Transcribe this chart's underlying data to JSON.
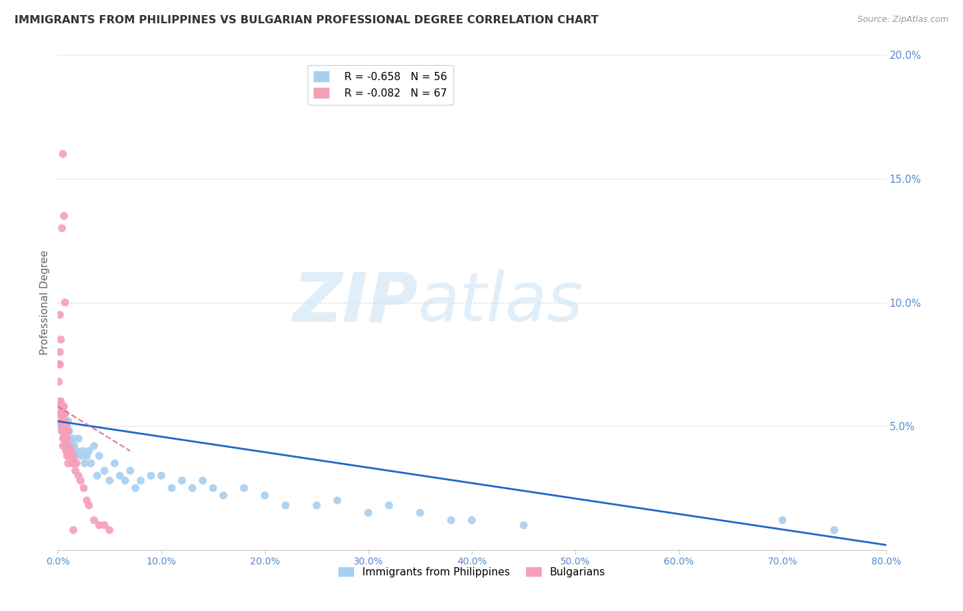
{
  "title": "IMMIGRANTS FROM PHILIPPINES VS BULGARIAN PROFESSIONAL DEGREE CORRELATION CHART",
  "source": "Source: ZipAtlas.com",
  "ylabel": "Professional Degree",
  "watermark_zip": "ZIP",
  "watermark_atlas": "atlas",
  "series": [
    {
      "name": "Immigrants from Philippines",
      "R": -0.658,
      "N": 56,
      "color": "#a8cff0",
      "line_color": "#2266cc",
      "line_style": "solid"
    },
    {
      "name": "Bulgarians",
      "R": -0.082,
      "N": 67,
      "color": "#f4a0b8",
      "line_color": "#e06080",
      "line_style": "dashed"
    }
  ],
  "xlim": [
    0.0,
    0.8
  ],
  "ylim": [
    0.0,
    0.2
  ],
  "xticks": [
    0.0,
    0.1,
    0.2,
    0.3,
    0.4,
    0.5,
    0.6,
    0.7,
    0.8
  ],
  "yticks": [
    0.0,
    0.05,
    0.1,
    0.15,
    0.2
  ],
  "xtick_labels": [
    "0.0%",
    "10.0%",
    "20.0%",
    "30.0%",
    "40.0%",
    "50.0%",
    "60.0%",
    "70.0%",
    "80.0%"
  ],
  "ytick_labels": [
    "",
    "5.0%",
    "10.0%",
    "15.0%",
    "20.0%"
  ],
  "background_color": "#ffffff",
  "grid_color": "#cccccc",
  "blue_scatter_x": [
    0.003,
    0.004,
    0.005,
    0.006,
    0.007,
    0.008,
    0.009,
    0.01,
    0.01,
    0.011,
    0.012,
    0.013,
    0.014,
    0.015,
    0.016,
    0.017,
    0.018,
    0.02,
    0.022,
    0.024,
    0.026,
    0.028,
    0.03,
    0.032,
    0.035,
    0.038,
    0.04,
    0.045,
    0.05,
    0.055,
    0.06,
    0.065,
    0.07,
    0.075,
    0.08,
    0.09,
    0.1,
    0.11,
    0.12,
    0.13,
    0.14,
    0.15,
    0.16,
    0.18,
    0.2,
    0.22,
    0.25,
    0.27,
    0.3,
    0.32,
    0.35,
    0.38,
    0.4,
    0.45,
    0.7,
    0.75
  ],
  "blue_scatter_y": [
    0.05,
    0.048,
    0.055,
    0.052,
    0.048,
    0.045,
    0.05,
    0.042,
    0.052,
    0.048,
    0.045,
    0.042,
    0.04,
    0.045,
    0.042,
    0.038,
    0.04,
    0.045,
    0.038,
    0.04,
    0.035,
    0.038,
    0.04,
    0.035,
    0.042,
    0.03,
    0.038,
    0.032,
    0.028,
    0.035,
    0.03,
    0.028,
    0.032,
    0.025,
    0.028,
    0.03,
    0.03,
    0.025,
    0.028,
    0.025,
    0.028,
    0.025,
    0.022,
    0.025,
    0.022,
    0.018,
    0.018,
    0.02,
    0.015,
    0.018,
    0.015,
    0.012,
    0.012,
    0.01,
    0.012,
    0.008
  ],
  "pink_scatter_x": [
    0.001,
    0.001,
    0.001,
    0.002,
    0.002,
    0.002,
    0.002,
    0.003,
    0.003,
    0.003,
    0.003,
    0.004,
    0.004,
    0.004,
    0.004,
    0.005,
    0.005,
    0.005,
    0.005,
    0.005,
    0.005,
    0.006,
    0.006,
    0.006,
    0.006,
    0.007,
    0.007,
    0.007,
    0.007,
    0.007,
    0.008,
    0.008,
    0.008,
    0.008,
    0.009,
    0.009,
    0.009,
    0.01,
    0.01,
    0.01,
    0.01,
    0.011,
    0.011,
    0.012,
    0.012,
    0.013,
    0.014,
    0.015,
    0.016,
    0.017,
    0.018,
    0.02,
    0.022,
    0.025,
    0.028,
    0.03,
    0.035,
    0.04,
    0.045,
    0.05,
    0.002,
    0.003,
    0.004,
    0.005,
    0.006,
    0.007,
    0.015
  ],
  "pink_scatter_y": [
    0.055,
    0.068,
    0.075,
    0.055,
    0.06,
    0.075,
    0.08,
    0.058,
    0.055,
    0.052,
    0.06,
    0.05,
    0.055,
    0.048,
    0.058,
    0.055,
    0.048,
    0.052,
    0.042,
    0.045,
    0.058,
    0.05,
    0.055,
    0.058,
    0.045,
    0.048,
    0.052,
    0.055,
    0.045,
    0.042,
    0.048,
    0.045,
    0.04,
    0.05,
    0.042,
    0.038,
    0.045,
    0.04,
    0.048,
    0.035,
    0.042,
    0.038,
    0.042,
    0.04,
    0.038,
    0.04,
    0.035,
    0.038,
    0.035,
    0.032,
    0.035,
    0.03,
    0.028,
    0.025,
    0.02,
    0.018,
    0.012,
    0.01,
    0.01,
    0.008,
    0.095,
    0.085,
    0.13,
    0.16,
    0.135,
    0.1,
    0.008
  ]
}
